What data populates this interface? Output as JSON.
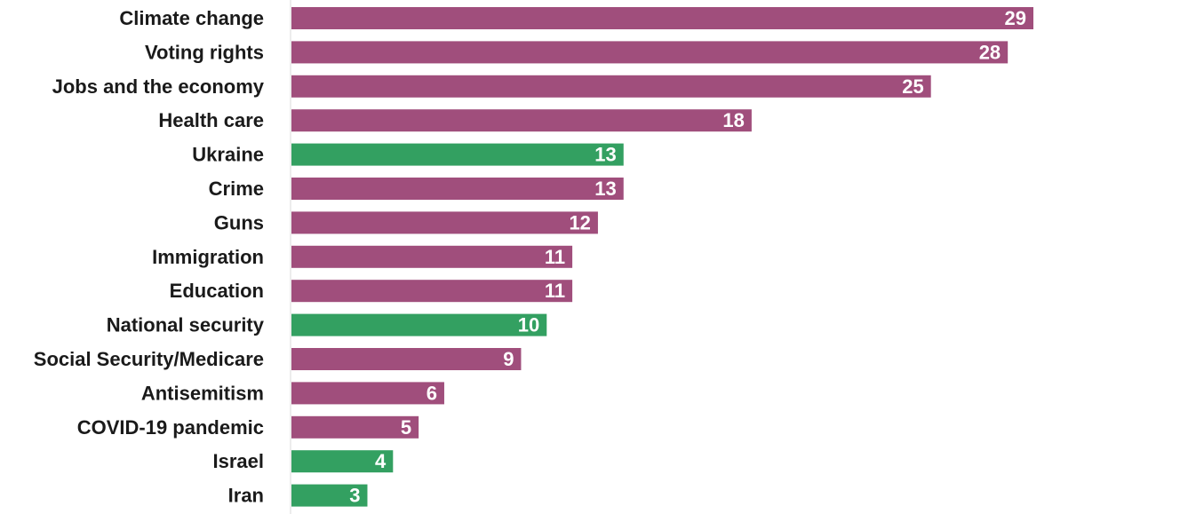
{
  "chart_data": {
    "type": "bar",
    "orientation": "horizontal",
    "categories": [
      "Climate change",
      "Voting rights",
      "Jobs and the economy",
      "Health care",
      "Ukraine",
      "Crime",
      "Guns",
      "Immigration",
      "Education",
      "National security",
      "Social Security/Medicare",
      "Antisemitism",
      "COVID-19 pandemic",
      "Israel",
      "Iran"
    ],
    "values": [
      29,
      28,
      25,
      18,
      13,
      13,
      12,
      11,
      11,
      10,
      9,
      6,
      5,
      4,
      3
    ],
    "bar_color_keys": [
      "purple",
      "purple",
      "purple",
      "purple",
      "green",
      "purple",
      "purple",
      "purple",
      "purple",
      "green",
      "purple",
      "purple",
      "purple",
      "green",
      "green"
    ],
    "xlim": [
      0,
      29
    ],
    "grid": false,
    "legend": "none",
    "colors": {
      "purple": "#a04e7c",
      "green": "#33a061",
      "axis_line": "#d9d9d9",
      "label_text": "#1a1a1a",
      "value_text": "#ffffff"
    }
  }
}
